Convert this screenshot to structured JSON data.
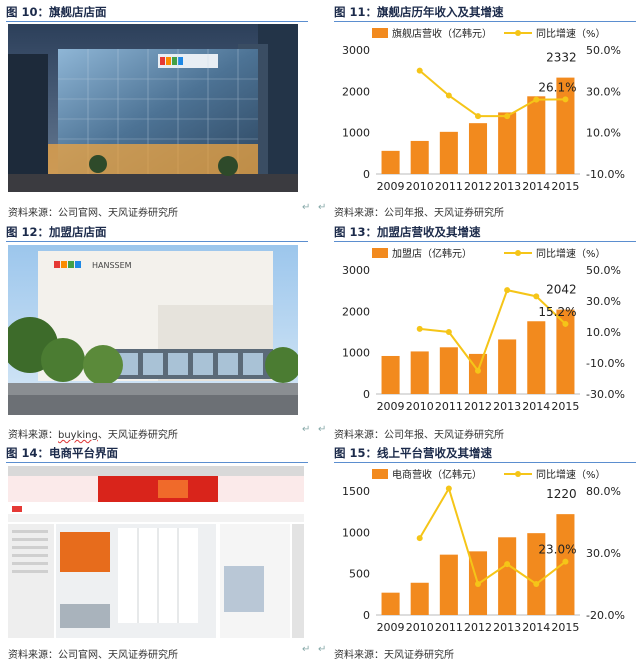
{
  "figures": {
    "fig10": {
      "title": "图 10：旗舰店店面",
      "source": "资料来源：公司官网、天风证券研究所"
    },
    "fig11": {
      "title": "图 11：旗舰店历年收入及其增速",
      "source": "资料来源：公司年报、天风证券研究所"
    },
    "fig12": {
      "title": "图 12：加盟店店面",
      "source_prefix": "资料来源：",
      "source_link": "buyking",
      "source_suffix": "、天风证券研究所"
    },
    "fig13": {
      "title": "图 13：加盟店营收及其增速",
      "source": "资料来源：公司年报、天风证券研究所"
    },
    "fig14": {
      "title": "图 14：电商平台界面",
      "source": "资料来源：公司官网、天风证券研究所"
    },
    "fig15": {
      "title": "图 15：线上平台营收及其增速",
      "source": "资料来源：天风证券研究所"
    }
  },
  "photos": {
    "fig12_sign": "HANSSEM"
  },
  "chart_data": [
    {
      "id": "fig11",
      "type": "bar",
      "categories": [
        "2009",
        "2010",
        "2011",
        "2012",
        "2013",
        "2014",
        "2015"
      ],
      "series": [
        {
          "name": "旗舰店营收（亿韩元）",
          "type": "bar",
          "values": [
            560,
            800,
            1020,
            1230,
            1490,
            1880,
            2332
          ],
          "color": "#f28a1e"
        },
        {
          "name": "同比增速（%）",
          "type": "line",
          "axis": "right",
          "values": [
            null,
            40.0,
            28.0,
            18.0,
            18.0,
            26.0,
            26.1
          ],
          "color": "#f5c518"
        }
      ],
      "ylim_left": [
        0,
        3000
      ],
      "yticks_left": [
        "0",
        "1000",
        "2000",
        "3000"
      ],
      "ylim_right": [
        -10,
        50
      ],
      "yticks_right": [
        "-10.0%",
        "10.0%",
        "30.0%",
        "50.0%"
      ],
      "annotations": [
        "2332",
        "26.1%"
      ]
    },
    {
      "id": "fig13",
      "type": "bar",
      "categories": [
        "2009",
        "2010",
        "2011",
        "2012",
        "2013",
        "2014",
        "2015"
      ],
      "series": [
        {
          "name": "加盟店（亿韩元）",
          "type": "bar",
          "values": [
            920,
            1030,
            1130,
            970,
            1320,
            1760,
            2042
          ],
          "color": "#f28a1e"
        },
        {
          "name": "同比增速（%）",
          "type": "line",
          "axis": "right",
          "values": [
            null,
            12.0,
            10.0,
            -15.0,
            37.0,
            33.0,
            15.2
          ],
          "color": "#f5c518"
        }
      ],
      "ylim_left": [
        0,
        3000
      ],
      "yticks_left": [
        "0",
        "1000",
        "2000",
        "3000"
      ],
      "ylim_right": [
        -30,
        50
      ],
      "yticks_right": [
        "-30.0%",
        "-10.0%",
        "10.0%",
        "30.0%",
        "50.0%"
      ],
      "annotations": [
        "2042",
        "15.2%"
      ]
    },
    {
      "id": "fig15",
      "type": "bar",
      "categories": [
        "2009",
        "2010",
        "2011",
        "2012",
        "2013",
        "2014",
        "2015"
      ],
      "series": [
        {
          "name": "电商营收（亿韩元）",
          "type": "bar",
          "values": [
            270,
            390,
            730,
            770,
            940,
            990,
            1220
          ],
          "color": "#f28a1e"
        },
        {
          "name": "同比增速（%）",
          "type": "line",
          "axis": "right",
          "values": [
            null,
            42.0,
            82.0,
            5.0,
            21.0,
            5.0,
            23.0
          ],
          "color": "#f5c518"
        }
      ],
      "ylim_left": [
        0,
        1500
      ],
      "yticks_left": [
        "0",
        "500",
        "1000",
        "1500"
      ],
      "ylim_right": [
        -20,
        80
      ],
      "yticks_right": [
        "-20.0%",
        "30.0%",
        "80.0%"
      ],
      "annotations": [
        "1220",
        "23.0%"
      ]
    }
  ]
}
